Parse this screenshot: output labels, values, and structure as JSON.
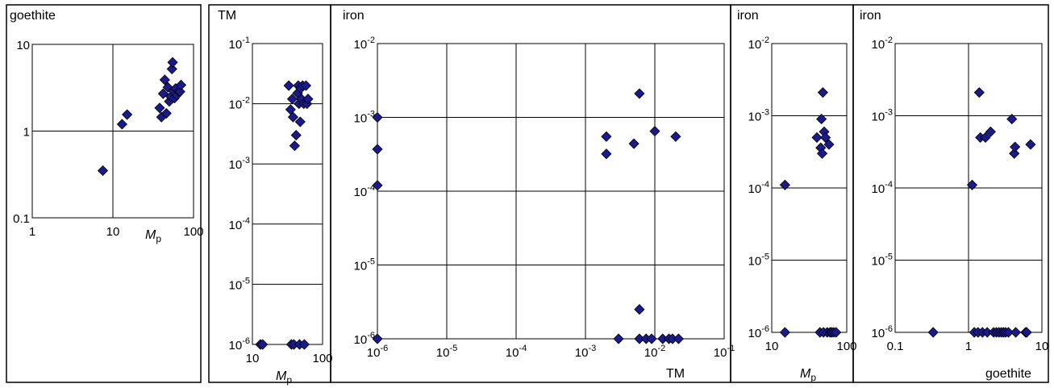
{
  "colors": {
    "marker": "#1a1a8c",
    "marker_edge": "#000000",
    "grid": "#000000"
  },
  "chart_data": [
    {
      "type": "scatter",
      "ylabel": "goethite",
      "xlabel_main": "M",
      "xlabel_sub": "p",
      "xscale": "log",
      "yscale": "log",
      "xlim": [
        1,
        100
      ],
      "ylim": [
        0.1,
        10
      ],
      "xtick_labels": [
        "1",
        "10",
        "100"
      ],
      "ytick_labels": [
        "0.1",
        "1",
        "10"
      ],
      "grid": true,
      "x": [
        7.5,
        13,
        15,
        38,
        40,
        42,
        44,
        46,
        48,
        50,
        52,
        54,
        55,
        56,
        58,
        60,
        62,
        65,
        68,
        70
      ],
      "y": [
        0.35,
        1.2,
        1.55,
        1.85,
        1.45,
        2.7,
        3.9,
        1.6,
        3.2,
        2.2,
        2.5,
        5.2,
        6.2,
        2.9,
        2.4,
        3.1,
        2.6,
        2.9,
        2.85,
        3.4
      ]
    },
    {
      "type": "scatter",
      "ylabel": "TM",
      "xlabel_main": "M",
      "xlabel_sub": "p",
      "xscale": "log",
      "yscale": "log",
      "xlim": [
        10,
        100
      ],
      "ylim": [
        1e-06,
        0.1
      ],
      "xtick_labels": [
        "10",
        "100"
      ],
      "ytick_labels": [
        "10^-6",
        "10^-5",
        "10^-4",
        "10^-3",
        "10^-2",
        "10^-1"
      ],
      "grid": true,
      "x": [
        13,
        14,
        33,
        35,
        36,
        37,
        38,
        39,
        40,
        42,
        44,
        45,
        46,
        47,
        48,
        49,
        50,
        52,
        54,
        55,
        58,
        60,
        62
      ],
      "y": [
        1e-06,
        1e-06,
        0.02,
        0.008,
        1e-06,
        0.012,
        0.006,
        1e-06,
        0.002,
        0.003,
        0.015,
        0.02,
        0.01,
        1e-06,
        0.005,
        0.018,
        0.012,
        0.02,
        0.01,
        1e-06,
        0.02,
        0.01,
        0.012
      ]
    },
    {
      "type": "scatter",
      "ylabel": "iron",
      "xlabel": "TM",
      "xscale": "log",
      "yscale": "log",
      "xlim": [
        1e-06,
        0.1
      ],
      "ylim": [
        1e-06,
        0.01
      ],
      "xtick_labels": [
        "10^-6",
        "10^-5",
        "10^-4",
        "10^-3",
        "10^-2",
        "10^-1"
      ],
      "ytick_labels": [
        "10^-6",
        "10^-5",
        "10^-4",
        "10^-3",
        "10^-2"
      ],
      "grid": true,
      "x": [
        1e-06,
        1e-06,
        1e-06,
        1e-06,
        0.002,
        0.002,
        0.003,
        0.005,
        0.006,
        0.006,
        0.006,
        0.0075,
        0.009,
        0.01,
        0.013,
        0.016,
        0.018,
        0.02,
        0.022
      ],
      "y": [
        0.001,
        0.00037,
        0.00012,
        1e-06,
        0.00055,
        0.00032,
        1e-06,
        0.00044,
        0.0021,
        2.5e-06,
        1e-06,
        1e-06,
        1e-06,
        0.00065,
        1e-06,
        1e-06,
        1e-06,
        0.00055,
        1e-06
      ]
    },
    {
      "type": "scatter",
      "ylabel": "iron",
      "xlabel_main": "M",
      "xlabel_sub": "p",
      "xscale": "log",
      "yscale": "log",
      "xlim": [
        10,
        100
      ],
      "ylim": [
        1e-06,
        0.01
      ],
      "xtick_labels": [
        "10",
        "100"
      ],
      "ytick_labels": [
        "10^-6",
        "10^-5",
        "10^-4",
        "10^-3",
        "10^-2"
      ],
      "grid": true,
      "x": [
        15,
        15,
        40,
        44,
        45,
        46,
        47,
        48,
        49,
        50,
        52,
        55,
        58,
        60,
        63,
        67,
        72
      ],
      "y": [
        0.00011,
        1e-06,
        0.0005,
        1e-06,
        0.00036,
        0.0009,
        0.0003,
        0.0021,
        1e-06,
        0.0006,
        0.0005,
        1e-06,
        0.0004,
        1e-06,
        1e-06,
        1e-06,
        1e-06
      ]
    },
    {
      "type": "scatter",
      "ylabel": "iron",
      "xlabel": "goethite",
      "xscale": "log",
      "yscale": "log",
      "xlim": [
        0.1,
        10
      ],
      "ylim": [
        1e-06,
        0.01
      ],
      "xtick_labels": [
        "0.1",
        "1",
        "10"
      ],
      "ytick_labels": [
        "10^-6",
        "10^-5",
        "10^-4",
        "10^-3",
        "10^-2"
      ],
      "grid": true,
      "x": [
        0.33,
        1.12,
        1.2,
        1.35,
        1.4,
        1.45,
        1.55,
        1.7,
        1.8,
        2.0,
        2.2,
        2.4,
        2.6,
        2.8,
        3.0,
        3.2,
        3.5,
        3.9,
        4.2,
        4.3,
        4.4,
        6.0,
        6.2,
        7.0
      ],
      "y": [
        1e-06,
        0.00011,
        1e-06,
        1e-06,
        0.0021,
        0.0005,
        1e-06,
        0.0005,
        1e-06,
        0.0006,
        1e-06,
        1e-06,
        1e-06,
        1e-06,
        1e-06,
        1e-06,
        1e-06,
        0.0009,
        0.0003,
        0.00037,
        1e-06,
        1e-06,
        1e-06,
        0.0004
      ]
    }
  ]
}
